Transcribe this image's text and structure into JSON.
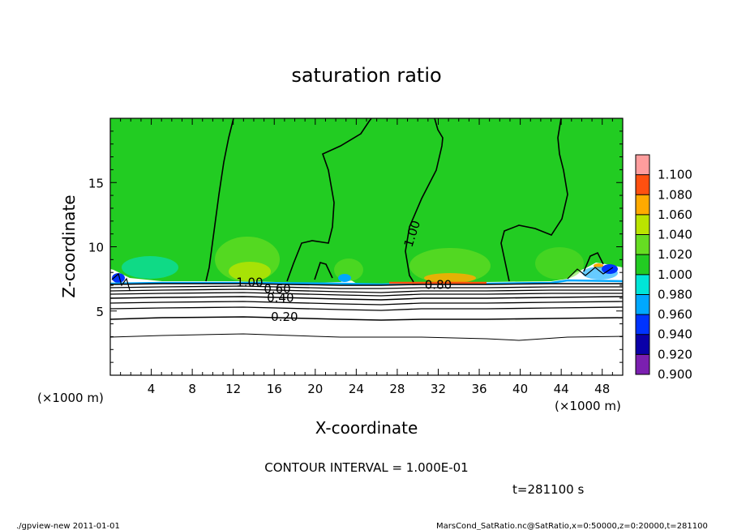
{
  "chart_data": {
    "type": "heatmap",
    "title": "saturation ratio",
    "xlabel": "X-coordinate",
    "ylabel": "Z-coordinate",
    "x_unit": "(×1000 m)",
    "y_unit": "(×1000 m)",
    "xlim": [
      0,
      50
    ],
    "ylim": [
      0,
      20
    ],
    "x_ticks": [
      4,
      8,
      12,
      16,
      20,
      24,
      28,
      32,
      36,
      40,
      44,
      48
    ],
    "x_tick_labels": [
      "4",
      "8",
      "12",
      "16",
      "20",
      "24",
      "28",
      "32",
      "36",
      "40",
      "44",
      "48"
    ],
    "y_ticks": [
      5,
      10,
      15
    ],
    "y_tick_labels": [
      "5",
      "10",
      "15"
    ],
    "colorbar": {
      "levels": [
        0.9,
        0.92,
        0.94,
        0.96,
        0.98,
        1.0,
        1.02,
        1.04,
        1.06,
        1.08,
        1.1
      ],
      "labels": [
        "0.900",
        "0.920",
        "0.940",
        "0.960",
        "0.980",
        "1.000",
        "1.020",
        "1.040",
        "1.060",
        "1.080",
        "1.100"
      ],
      "colors": [
        "#7b1fb0",
        "#0a00a8",
        "#0033ff",
        "#00a8ff",
        "#00e5d8",
        "#22cc22",
        "#66dd22",
        "#bbe400",
        "#ffaa00",
        "#ff5010",
        "#ff9d9d"
      ]
    },
    "contour_labels": [
      {
        "text": "1.00",
        "x": 13.6,
        "z": 7.2
      },
      {
        "text": "0.60",
        "x": 16.3,
        "z": 6.7
      },
      {
        "text": "0.40",
        "x": 16.6,
        "z": 6.0
      },
      {
        "text": "0.20",
        "x": 17.0,
        "z": 4.5
      },
      {
        "text": "1.00",
        "x": 29.5,
        "z": 11.0
      },
      {
        "text": "0.80",
        "x": 32.0,
        "z": 7.0
      }
    ],
    "contour_interval_text": "CONTOUR INTERVAL = 1.000E-01",
    "time_text": "t=281100 s"
  },
  "footer": {
    "left": "./gpview-new   2011-01-01",
    "right": "MarsCond_SatRatio.nc@SatRatio,x=0:50000,z=0:20000,t=281100"
  }
}
